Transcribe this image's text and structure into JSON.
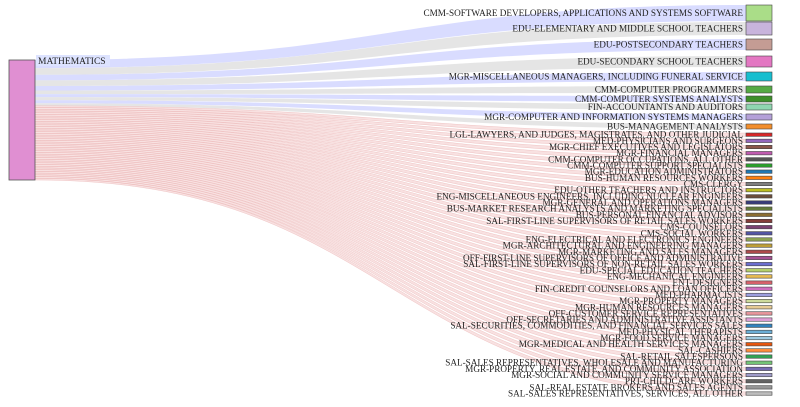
{
  "source": {
    "label": "MATHEMATICS",
    "color": "#e08fd2"
  },
  "targets": [
    {
      "label": "CMM-SOFTWARE DEVELOPERS, APPLICATIONS AND SYSTEMS SOFTWARE",
      "color": "#aadd88"
    },
    {
      "label": "EDU-ELEMENTARY AND MIDDLE SCHOOL TEACHERS",
      "color": "#c8b4dc"
    },
    {
      "label": "EDU-POSTSECONDARY TEACHERS",
      "color": "#c49c94"
    },
    {
      "label": "EDU-SECONDARY SCHOOL TEACHERS",
      "color": "#e377c2"
    },
    {
      "label": "MGR-MISCELLANEOUS MANAGERS, INCLUDING FUNERAL SERVICE",
      "color": "#17becf"
    },
    {
      "label": "CMM-COMPUTER PROGRAMMERS",
      "color": "#55aa44"
    },
    {
      "label": "CMM-COMPUTER SYSTEMS ANALYSTS",
      "color": "#3d8f2a"
    },
    {
      "label": "FIN-ACCOUNTANTS AND AUDITORS",
      "color": "#8fd6b0"
    },
    {
      "label": "MGR-COMPUTER AND INFORMATION SYSTEMS MANAGERS",
      "color": "#b4a0d8"
    },
    {
      "label": "BUS-MANAGEMENT ANALYSTS",
      "color": "#f28e2b"
    },
    {
      "label": "LGL-LAWYERS, AND JUDGES, MAGISTRATES, AND OTHER JUDICIAL",
      "color": "#d62728"
    },
    {
      "label": "MED-PHYSICIANS AND SURGEONS",
      "color": "#9467bd"
    },
    {
      "label": "MGR-CHIEF EXECUTIVES AND LEGISLATORS",
      "color": "#8c564b"
    },
    {
      "label": "MGR-FINANCIAL MANAGERS",
      "color": "#c05bb0"
    },
    {
      "label": "CMM-COMPUTER OCCUPATIONS, ALL OTHER",
      "color": "#555555"
    },
    {
      "label": "CMM-COMPUTER SUPPORT SPECIALISTS",
      "color": "#2ca02c"
    },
    {
      "label": "MGR-EDUCATION ADMINISTRATORS",
      "color": "#1f77b4"
    },
    {
      "label": "BUS-HUMAN RESOURCES WORKERS",
      "color": "#ff7f0e"
    },
    {
      "label": "CMS-CLERGY",
      "color": "#7f7f7f"
    },
    {
      "label": "EDU-OTHER TEACHERS AND INSTRUCTORS",
      "color": "#bcbd22"
    },
    {
      "label": "ENG-MISCELLANEOUS ENGINEERS, INCLUDING NUCLEAR ENGINEERS",
      "color": "#6b4c3b"
    },
    {
      "label": "MGR-GENERAL AND OPERATIONS MANAGERS",
      "color": "#393b79"
    },
    {
      "label": "BUS-MARKET RESEARCH ANALYSTS AND MARKETING SPECIALISTS",
      "color": "#637939"
    },
    {
      "label": "BUS-PERSONAL FINANCIAL ADVISORS",
      "color": "#8c6d31"
    },
    {
      "label": "SAL-FIRST-LINE SUPERVISORS OF RETAIL SALES WORKERS",
      "color": "#843c39"
    },
    {
      "label": "CMS-COUNSELORS",
      "color": "#7b4173"
    },
    {
      "label": "CMS-SOCIAL WORKERS",
      "color": "#5254a3"
    },
    {
      "label": "ENG-ELECTRICAL AND ELECTRONICS ENGINEERS",
      "color": "#8ca252"
    },
    {
      "label": "MGR-ARCHITECTURAL AND ENGINEERING MANAGERS",
      "color": "#bd9e39"
    },
    {
      "label": "MGR-MARKETING AND SALES MANAGERS",
      "color": "#ad494a"
    },
    {
      "label": "OFF-FIRST-LINE SUPERVISORS OF OFFICE AND ADMINISTRATIVE",
      "color": "#a55194"
    },
    {
      "label": "SAL-FIRST-LINE SUPERVISORS OF NON-RETAIL SALES WORKERS",
      "color": "#6b6ecf"
    },
    {
      "label": "EDU-SPECIAL EDUCATION TEACHERS",
      "color": "#b5cf6b"
    },
    {
      "label": "ENG-MECHANICAL ENGINEERS",
      "color": "#e7ba52"
    },
    {
      "label": "ENT-DESIGNERS",
      "color": "#d6616b"
    },
    {
      "label": "FIN-CREDIT COUNSELORS AND LOAN OFFICERS",
      "color": "#ce6dbd"
    },
    {
      "label": "MED-PHARMACISTS",
      "color": "#9c9ede"
    },
    {
      "label": "MGR-PROPERTY MANAGERS",
      "color": "#cedb9c"
    },
    {
      "label": "MGR-HUMAN RESOURCES MANAGERS",
      "color": "#e7cb94"
    },
    {
      "label": "OFF-CUSTOMER SERVICE REPRESENTATIVES",
      "color": "#e7969c"
    },
    {
      "label": "OFF-SECRETARIES AND ADMINISTRATIVE ASSISTANTS",
      "color": "#de9ed6"
    },
    {
      "label": "SAL-SECURITIES, COMMODITIES, AND FINANCIAL SERVICES SALES",
      "color": "#3182bd"
    },
    {
      "label": "MED-PHYSICAL THERAPISTS",
      "color": "#6baed6"
    },
    {
      "label": "MGR-FOOD SERVICE MANAGERS",
      "color": "#9ecae1"
    },
    {
      "label": "MGR-MEDICAL AND HEALTH SERVICES MANAGERS",
      "color": "#e6550d"
    },
    {
      "label": "SAL-CASHIERS",
      "color": "#fd8d3c"
    },
    {
      "label": "SAL-RETAIL SALESPERSONS",
      "color": "#31a354"
    },
    {
      "label": "SAL-SALES REPRESENTATIVES, WHOLESALE AND MANUFACTURING",
      "color": "#74c476"
    },
    {
      "label": "MGR-PROPERTY, REAL ESTATE, AND COMMUNITY ASSOCIATION",
      "color": "#756bb1"
    },
    {
      "label": "MGR-SOCIAL AND COMMUNITY SERVICE MANAGERS",
      "color": "#9e9ac8"
    },
    {
      "label": "PRT-CHILDCARE WORKERS",
      "color": "#636363"
    },
    {
      "label": "SAL-REAL ESTATE BROKERS AND SALES AGENTS",
      "color": "#969696"
    },
    {
      "label": "SAL-SALES REPRESENTATIVES, SERVICES, ALL OTHER",
      "color": "#bdbdbd"
    }
  ]
}
